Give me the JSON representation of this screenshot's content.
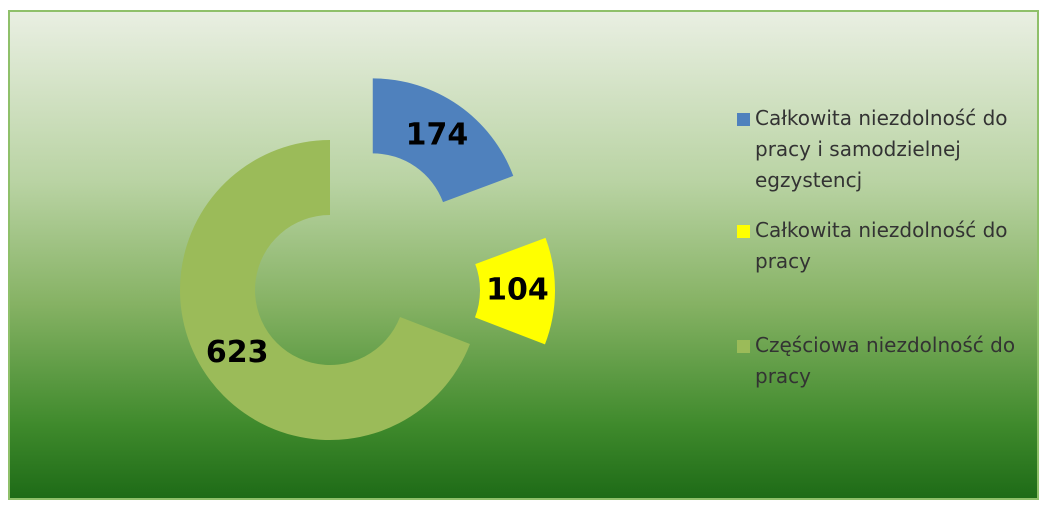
{
  "chart_data": {
    "type": "donut",
    "categories": [
      "Całkowita niezdolność do pracy i samodzielnej egzystencj",
      "Całkowita niezdolność do pracy",
      "Częściowa niezdolność do pracy"
    ],
    "values": [
      174,
      104,
      623
    ],
    "colors": [
      "#4f81bd",
      "#ffff00",
      "#9bbb59"
    ]
  }
}
